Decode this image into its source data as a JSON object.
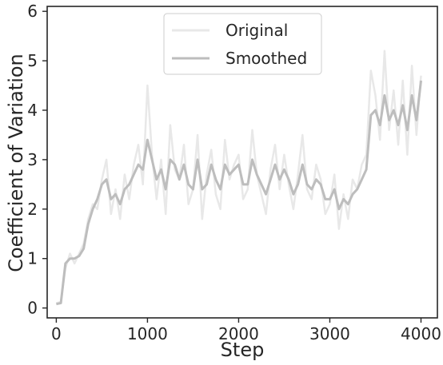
{
  "chart_data": {
    "type": "line",
    "xlabel": "Step",
    "ylabel": "Coefficient of Variation",
    "xlim": [
      -100,
      4180
    ],
    "ylim": [
      -0.2,
      6.1
    ],
    "xticks": [
      0,
      1000,
      2000,
      3000,
      4000
    ],
    "xtick_labels": [
      "0",
      "1000",
      "2000",
      "3000",
      "4000"
    ],
    "yticks": [
      0,
      1,
      2,
      3,
      4,
      5,
      6
    ],
    "ytick_labels": [
      "0",
      "1",
      "2",
      "3",
      "4",
      "5",
      "6"
    ],
    "grid": false,
    "legend_position": "top-center",
    "series": [
      {
        "name": "Original",
        "color": "#e8e8e8",
        "x": [
          0,
          50,
          100,
          150,
          200,
          250,
          300,
          350,
          400,
          450,
          500,
          550,
          600,
          650,
          700,
          750,
          800,
          850,
          900,
          950,
          1000,
          1050,
          1100,
          1150,
          1200,
          1250,
          1300,
          1350,
          1400,
          1450,
          1500,
          1550,
          1600,
          1650,
          1700,
          1750,
          1800,
          1850,
          1900,
          1950,
          2000,
          2050,
          2100,
          2150,
          2200,
          2250,
          2300,
          2350,
          2400,
          2450,
          2500,
          2550,
          2600,
          2650,
          2700,
          2750,
          2800,
          2850,
          2900,
          2950,
          3000,
          3050,
          3100,
          3150,
          3200,
          3250,
          3300,
          3350,
          3400,
          3450,
          3500,
          3550,
          3600,
          3650,
          3700,
          3750,
          3800,
          3850,
          3900,
          3950,
          4000
        ],
        "y": [
          0.1,
          0.12,
          0.8,
          1.1,
          0.9,
          1.1,
          1.3,
          1.8,
          2.1,
          2.0,
          2.6,
          3.0,
          1.9,
          2.4,
          1.8,
          2.7,
          2.2,
          2.9,
          3.3,
          2.5,
          4.5,
          3.1,
          2.2,
          3.0,
          1.9,
          3.7,
          2.8,
          2.6,
          3.3,
          2.1,
          2.4,
          3.5,
          1.8,
          2.7,
          3.2,
          2.3,
          2.0,
          3.4,
          2.6,
          2.9,
          3.1,
          2.2,
          2.4,
          3.6,
          2.7,
          2.3,
          1.9,
          2.8,
          3.3,
          2.4,
          3.1,
          2.5,
          2.0,
          2.7,
          3.5,
          2.4,
          2.2,
          2.9,
          2.6,
          1.9,
          2.1,
          2.7,
          1.6,
          2.3,
          1.8,
          2.6,
          2.4,
          2.9,
          3.1,
          4.8,
          4.3,
          3.4,
          5.2,
          3.6,
          4.4,
          3.3,
          4.6,
          3.1,
          4.9,
          3.5,
          4.7
        ]
      },
      {
        "name": "Smoothed",
        "color": "#bdbdbd",
        "x": [
          0,
          50,
          100,
          150,
          200,
          250,
          300,
          350,
          400,
          450,
          500,
          550,
          600,
          650,
          700,
          750,
          800,
          850,
          900,
          950,
          1000,
          1050,
          1100,
          1150,
          1200,
          1250,
          1300,
          1350,
          1400,
          1450,
          1500,
          1550,
          1600,
          1650,
          1700,
          1750,
          1800,
          1850,
          1900,
          1950,
          2000,
          2050,
          2100,
          2150,
          2200,
          2250,
          2300,
          2350,
          2400,
          2450,
          2500,
          2550,
          2600,
          2650,
          2700,
          2750,
          2800,
          2850,
          2900,
          2950,
          3000,
          3050,
          3100,
          3150,
          3200,
          3250,
          3300,
          3350,
          3400,
          3450,
          3500,
          3550,
          3600,
          3650,
          3700,
          3750,
          3800,
          3850,
          3900,
          3950,
          4000
        ],
        "y": [
          0.08,
          0.1,
          0.9,
          1.0,
          1.0,
          1.05,
          1.2,
          1.7,
          2.0,
          2.2,
          2.5,
          2.6,
          2.2,
          2.3,
          2.1,
          2.4,
          2.5,
          2.7,
          2.9,
          2.8,
          3.4,
          3.0,
          2.6,
          2.8,
          2.4,
          3.0,
          2.9,
          2.6,
          2.9,
          2.5,
          2.4,
          3.0,
          2.4,
          2.5,
          2.9,
          2.6,
          2.4,
          2.9,
          2.7,
          2.8,
          2.9,
          2.5,
          2.5,
          3.0,
          2.7,
          2.5,
          2.3,
          2.6,
          2.9,
          2.6,
          2.8,
          2.6,
          2.3,
          2.5,
          2.9,
          2.5,
          2.4,
          2.6,
          2.5,
          2.2,
          2.2,
          2.4,
          2.0,
          2.2,
          2.1,
          2.3,
          2.4,
          2.6,
          2.8,
          3.9,
          4.0,
          3.7,
          4.3,
          3.8,
          4.0,
          3.7,
          4.1,
          3.6,
          4.3,
          3.8,
          4.6
        ]
      }
    ]
  }
}
